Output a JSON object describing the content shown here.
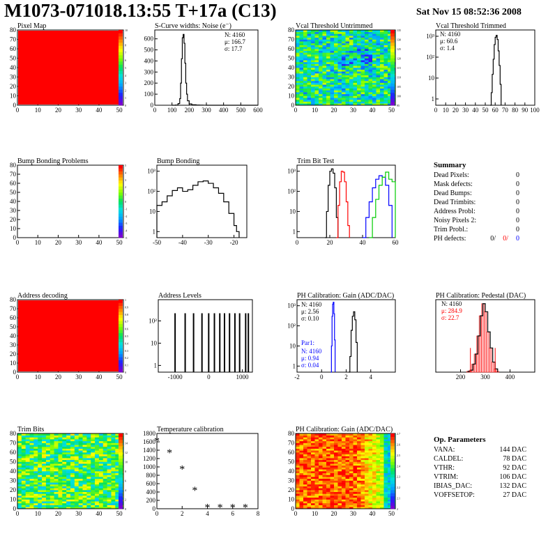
{
  "header": {
    "title": "M1073-071018.13:55 T+17a (C13)",
    "date": "Sat Nov 15 08:52:36 2008"
  },
  "colors": {
    "red": "#ff0000",
    "blue": "#0000ff",
    "green": "#00cc00",
    "black": "#000000"
  },
  "chart_data": [
    {
      "id": "pixel-map",
      "type": "heatmap",
      "title": "Pixel Map",
      "x_ticks": [
        0,
        10,
        20,
        30,
        40,
        50
      ],
      "y_ticks": [
        0,
        10,
        20,
        30,
        40,
        50,
        60,
        70,
        80
      ],
      "xlim": [
        0,
        52
      ],
      "ylim": [
        0,
        80
      ],
      "fill": "uniform-red",
      "colorbar_ticks": [
        "0",
        "1",
        "2",
        "3",
        "4",
        "5",
        "6",
        "7",
        "8",
        "9",
        "10"
      ]
    },
    {
      "id": "s-curve",
      "type": "line",
      "title": "S-Curve widths: Noise (e⁻)",
      "x_ticks": [
        0,
        100,
        200,
        300,
        400,
        500,
        600
      ],
      "y_ticks": [
        0,
        100,
        200,
        300,
        400,
        500,
        600
      ],
      "xlim": [
        0,
        600
      ],
      "ylim": [
        0,
        680
      ],
      "stats": [
        "N: 4160",
        "μ: 166.7",
        "σ: 17.7"
      ],
      "series": [
        {
          "color": "#000000",
          "x": [
            100,
            120,
            135,
            145,
            150,
            155,
            160,
            165,
            170,
            175,
            180,
            185,
            190,
            200,
            215,
            240,
            260,
            280,
            300,
            600
          ],
          "y": [
            0,
            2,
            15,
            60,
            200,
            420,
            610,
            640,
            560,
            380,
            200,
            100,
            40,
            12,
            4,
            2,
            1,
            0.5,
            0,
            0
          ]
        }
      ]
    },
    {
      "id": "vcal-untrimmed",
      "type": "heatmap",
      "title": "Vcal Threshold Untrimmed",
      "x_ticks": [
        0,
        10,
        20,
        30,
        40,
        50
      ],
      "y_ticks": [
        0,
        10,
        20,
        30,
        40,
        50,
        60,
        70,
        80
      ],
      "xlim": [
        0,
        52
      ],
      "ylim": [
        0,
        80
      ],
      "fill": "noisy-green",
      "colorbar_ticks": [
        "95",
        "100",
        "105",
        "110",
        "115",
        "120",
        "125",
        "130",
        "135"
      ]
    },
    {
      "id": "vcal-trimmed",
      "type": "line",
      "title": "Vcal Threshold Trimmed",
      "log_y": true,
      "x_ticks": [
        0,
        10,
        20,
        30,
        40,
        50,
        60,
        70,
        80,
        90,
        100
      ],
      "y_ticks": [
        "1",
        "10",
        "10²",
        "10³"
      ],
      "xlim": [
        0,
        100
      ],
      "ylim": [
        0.5,
        2000
      ],
      "stats": [
        "N: 4160",
        "μ: 60.6",
        "σ: 1.4"
      ],
      "series": [
        {
          "color": "#000000",
          "x": [
            55,
            56,
            57,
            58,
            59,
            60,
            61,
            62,
            63,
            64,
            65,
            66
          ],
          "y": [
            0.5,
            2,
            15,
            80,
            400,
            900,
            1100,
            700,
            200,
            40,
            5,
            0.5
          ]
        }
      ]
    },
    {
      "id": "bump-bonding-problems",
      "type": "heatmap",
      "title": "Bump Bonding Problems",
      "x_ticks": [
        0,
        10,
        20,
        30,
        40,
        50
      ],
      "y_ticks": [
        0,
        10,
        20,
        30,
        40,
        50,
        60,
        70,
        80
      ],
      "xlim": [
        0,
        52
      ],
      "ylim": [
        0,
        80
      ],
      "fill": "empty",
      "colorbar_ticks": [
        "-5",
        "-4",
        "-3",
        "-2",
        "-1",
        "0",
        "1",
        "2",
        "3",
        "4",
        "5"
      ]
    },
    {
      "id": "bump-bonding",
      "type": "line",
      "title": "Bump Bonding",
      "log_y": true,
      "x_ticks": [
        -50,
        -40,
        -30,
        -20
      ],
      "y_ticks": [
        "1",
        "10",
        "10²",
        "10³"
      ],
      "xlim": [
        -50,
        -15
      ],
      "ylim": [
        0.5,
        2000
      ],
      "series": [
        {
          "color": "#000000",
          "x": [
            -50,
            -48,
            -46,
            -44,
            -42,
            -40,
            -38,
            -36,
            -34,
            -32,
            -30,
            -28,
            -26,
            -24,
            -22,
            -20,
            -19,
            -18
          ],
          "y": [
            20,
            30,
            60,
            110,
            150,
            100,
            120,
            200,
            300,
            330,
            250,
            150,
            80,
            30,
            8,
            2,
            1,
            0.5
          ]
        }
      ]
    },
    {
      "id": "trim-bit-test",
      "type": "line",
      "title": "Trim Bit Test",
      "log_y": true,
      "x_ticks": [
        0,
        20,
        40,
        60
      ],
      "y_ticks": [
        "1",
        "10",
        "10²",
        "10³"
      ],
      "xlim": [
        0,
        60
      ],
      "ylim": [
        0.5,
        2000
      ],
      "series": [
        {
          "color": "#000000",
          "x": [
            17,
            18,
            19,
            20,
            21,
            22,
            23,
            24,
            25
          ],
          "y": [
            0.5,
            10,
            200,
            1000,
            1300,
            800,
            150,
            5,
            0.5
          ]
        },
        {
          "color": "#ff0000",
          "x": [
            24,
            25,
            26,
            27,
            28,
            29,
            30,
            31,
            32
          ],
          "y": [
            0.5,
            20,
            300,
            1000,
            900,
            300,
            30,
            2,
            0.5
          ]
        },
        {
          "color": "#0000ff",
          "x": [
            40,
            42,
            44,
            46,
            48,
            50,
            52,
            54,
            56,
            58
          ],
          "y": [
            0.5,
            5,
            30,
            150,
            400,
            600,
            500,
            200,
            20,
            0.5
          ]
        },
        {
          "color": "#00cc00",
          "x": [
            44,
            46,
            48,
            50,
            52,
            54,
            56,
            58,
            60
          ],
          "y": [
            0.5,
            5,
            40,
            200,
            500,
            900,
            400,
            300,
            150
          ]
        }
      ]
    },
    {
      "id": "address-decoding",
      "type": "heatmap",
      "title": "Address decoding",
      "x_ticks": [
        0,
        10,
        20,
        30,
        40,
        50
      ],
      "y_ticks": [
        0,
        10,
        20,
        30,
        40,
        50,
        60,
        70,
        80
      ],
      "xlim": [
        0,
        52
      ],
      "ylim": [
        0,
        80
      ],
      "fill": "uniform-red",
      "colorbar_ticks": [
        "0",
        "0.1",
        "0.2",
        "0.3",
        "0.4",
        "0.5",
        "0.6",
        "0.7",
        "0.8",
        "0.9",
        "1"
      ]
    },
    {
      "id": "address-levels",
      "type": "bar",
      "title": "Address Levels",
      "log_y": true,
      "x_ticks": [
        -1000,
        0,
        1000
      ],
      "y_ticks": [
        "1",
        "10",
        "10²"
      ],
      "xlim": [
        -1500,
        1300
      ],
      "ylim": [
        0.5,
        900
      ],
      "peaks_x": [
        -1000,
        -700,
        -450,
        -200,
        0,
        170,
        330,
        470,
        620,
        780,
        920,
        1100,
        1180
      ]
    },
    {
      "id": "ph-gain",
      "type": "line",
      "title": "PH Calibration: Gain (ADC/DAC)",
      "log_y": true,
      "x_ticks": [
        -2,
        0,
        2,
        4
      ],
      "y_ticks": [
        "1",
        "10",
        "10²",
        "10³"
      ],
      "xlim": [
        -2,
        6
      ],
      "ylim": [
        0.5,
        2000
      ],
      "stats": [
        "N: 4160",
        "μ: 2.56",
        "σ: 0.10"
      ],
      "stats2_label": "Par1:",
      "stats2": [
        "N: 4160",
        "μ: 0.94",
        "σ: 0.04"
      ],
      "series": [
        {
          "color": "#000000",
          "x": [
            2.2,
            2.3,
            2.4,
            2.5,
            2.6,
            2.7,
            2.8,
            2.9
          ],
          "y": [
            0.5,
            3,
            60,
            300,
            500,
            200,
            15,
            0.5
          ]
        },
        {
          "color": "#0000ff",
          "x": [
            0.75,
            0.8,
            0.85,
            0.9,
            0.95,
            1.0,
            1.05,
            1.1
          ],
          "y": [
            0.5,
            10,
            300,
            1200,
            1500,
            400,
            20,
            0.5
          ]
        }
      ]
    },
    {
      "id": "ph-pedestal",
      "type": "bar",
      "title": "PH Calibration: Pedestal (DAC)",
      "x_ticks": [
        200,
        300,
        400
      ],
      "ylim": [
        0,
        180
      ],
      "xlim": [
        100,
        500
      ],
      "stats": [
        "N: 4160",
        "μ: 284.9",
        "σ: 22.7"
      ],
      "values_x": [
        230,
        240,
        250,
        260,
        270,
        280,
        290,
        300,
        310,
        320,
        330,
        340,
        350
      ],
      "values_y": [
        2,
        5,
        20,
        45,
        90,
        140,
        170,
        150,
        100,
        60,
        25,
        8,
        2
      ]
    },
    {
      "id": "trim-bits",
      "type": "heatmap",
      "title": "Trim Bits",
      "x_ticks": [
        0,
        10,
        20,
        30,
        40,
        50
      ],
      "y_ticks": [
        0,
        10,
        20,
        30,
        40,
        50,
        60,
        70,
        80
      ],
      "xlim": [
        0,
        52
      ],
      "ylim": [
        0,
        80
      ],
      "fill": "trim",
      "colorbar_ticks": [
        "0",
        "2",
        "4",
        "6",
        "8",
        "10",
        "12",
        "14",
        "16"
      ]
    },
    {
      "id": "temperature-calibration",
      "type": "scatter",
      "title": "Temperature calibration",
      "x_ticks": [
        0,
        2,
        4,
        6,
        8
      ],
      "y_ticks": [
        0,
        200,
        400,
        600,
        800,
        1000,
        1200,
        1400,
        1600,
        1800
      ],
      "xlim": [
        0,
        8
      ],
      "ylim": [
        0,
        1800
      ],
      "x": [
        0,
        1,
        2,
        3,
        4,
        5,
        6,
        7
      ],
      "y": [
        1630,
        1350,
        960,
        450,
        45,
        45,
        45,
        45
      ]
    },
    {
      "id": "ph-gain-map",
      "type": "heatmap",
      "title": "PH Calibration: Gain (ADC/DAC)",
      "x_ticks": [
        0,
        10,
        20,
        30,
        40,
        50
      ],
      "y_ticks": [
        0,
        10,
        20,
        30,
        40,
        50,
        60,
        70,
        80
      ],
      "xlim": [
        0,
        52
      ],
      "ylim": [
        0,
        80
      ],
      "fill": "gain",
      "colorbar_ticks": [
        "2",
        "2.1",
        "2.2",
        "2.3",
        "2.4",
        "2.5",
        "2.6",
        "2.7"
      ]
    }
  ],
  "summary": {
    "title": "Summary",
    "rows": [
      {
        "label": "Dead Pixels:",
        "value": "0"
      },
      {
        "label": "Mask defects:",
        "value": "0"
      },
      {
        "label": "Dead Bumps:",
        "value": "0"
      },
      {
        "label": "Dead Trimbits:",
        "value": "0"
      },
      {
        "label": "Address Probl:",
        "value": "0"
      },
      {
        "label": "Noisy Pixels 2:",
        "value": "0"
      },
      {
        "label": "Trim Probl.:",
        "value": "0"
      }
    ],
    "ph_label": "PH defects:",
    "ph_values": [
      "0/",
      "0/",
      "0"
    ]
  },
  "op_params": {
    "title": "Op. Parameters",
    "rows": [
      {
        "label": "VANA:",
        "value": "144 DAC"
      },
      {
        "label": "CALDEL:",
        "value": "78 DAC"
      },
      {
        "label": "VTHR:",
        "value": "92 DAC"
      },
      {
        "label": "VTRIM:",
        "value": "106 DAC"
      },
      {
        "label": "IBIAS_DAC:",
        "value": "132 DAC"
      },
      {
        "label": "VOFFSETOP:",
        "value": "27 DAC"
      }
    ]
  }
}
